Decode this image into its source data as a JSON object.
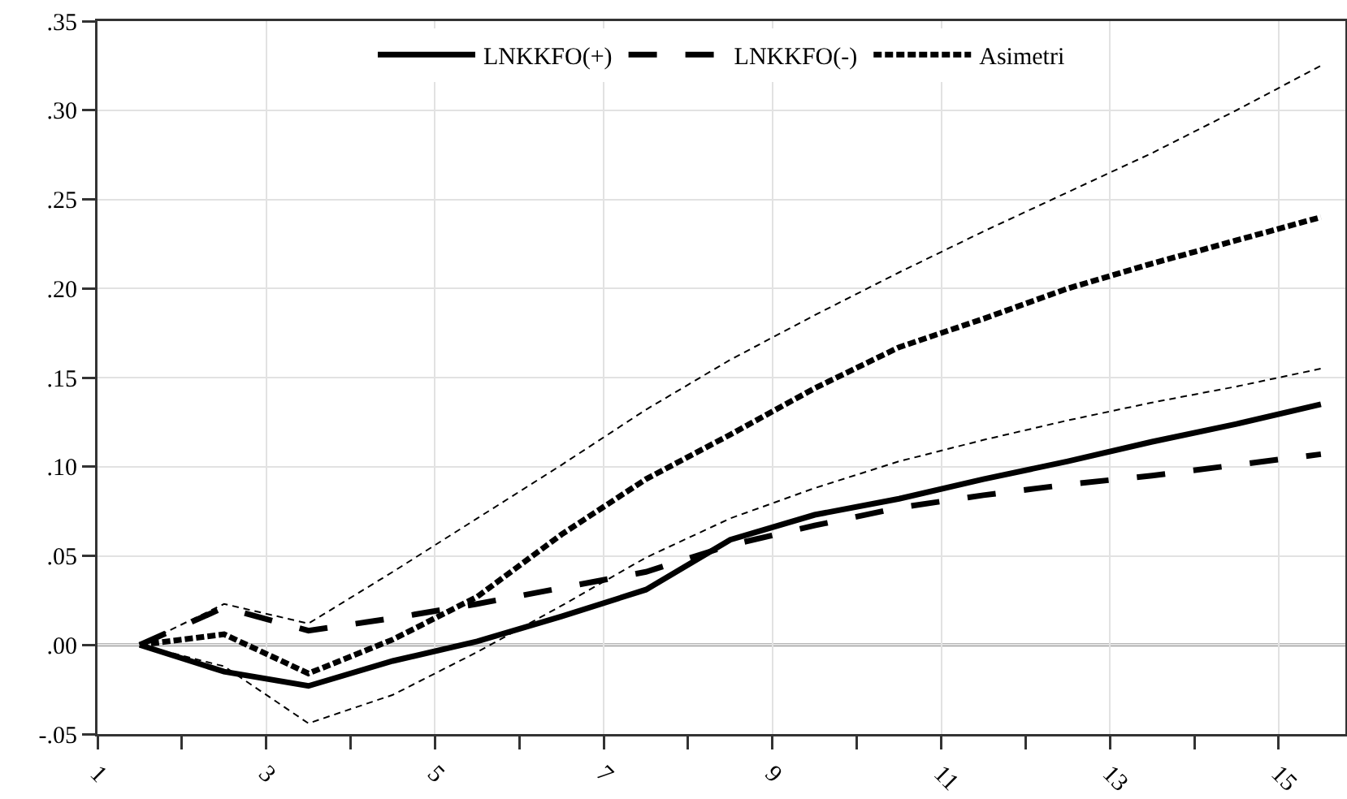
{
  "chart_data": {
    "type": "line",
    "x": [
      1,
      2,
      3,
      4,
      5,
      6,
      7,
      8,
      9,
      10,
      11,
      12,
      13,
      14,
      15
    ],
    "series": [
      {
        "name": "LNKKFO(+)",
        "color": "#000000",
        "line_style": "solid",
        "values": [
          0,
          -0.015,
          -0.023,
          -0.009,
          0.002,
          0.016,
          0.031,
          0.059,
          0.073,
          0.082,
          0.093,
          0.103,
          0.114,
          0.124,
          0.135
        ]
      },
      {
        "name": "LNKKFO(-)",
        "color": "#000000",
        "line_style": "dashed",
        "values": [
          0,
          0.021,
          0.008,
          0.015,
          0.023,
          0.032,
          0.041,
          0.056,
          0.067,
          0.077,
          0.084,
          0.09,
          0.095,
          0.101,
          0.107
        ]
      },
      {
        "name": "Asimetri",
        "color": "#000000",
        "line_style": "dotted",
        "values": [
          0,
          0.006,
          -0.016,
          0.003,
          0.027,
          0.062,
          0.093,
          0.118,
          0.144,
          0.167,
          0.183,
          0.2,
          0.214,
          0.227,
          0.24
        ]
      },
      {
        "color": "#000000",
        "line_style": "dashed",
        "values": [
          0,
          0.023,
          0.012,
          0.041,
          0.071,
          0.101,
          0.132,
          0.16,
          0.185,
          0.209,
          0.232,
          0.254,
          0.276,
          0.3,
          0.325
        ]
      },
      {
        "color": "#000000",
        "line_style": "dashed",
        "values": [
          0,
          -0.012,
          -0.044,
          -0.028,
          -0.004,
          0.022,
          0.049,
          0.071,
          0.088,
          0.103,
          0.115,
          0.126,
          0.136,
          0.145,
          0.155
        ]
      }
    ],
    "xlim": [
      0.5,
      15.29
    ],
    "xticks": [
      {
        "value": 0.5,
        "label": "1"
      },
      {
        "value": 1.5,
        "label": null
      },
      {
        "value": 2.5,
        "label": "3"
      },
      {
        "value": 3.5,
        "label": null
      },
      {
        "value": 4.5,
        "label": "5"
      },
      {
        "value": 5.5,
        "label": null
      },
      {
        "value": 6.5,
        "label": "7"
      },
      {
        "value": 7.5,
        "label": null
      },
      {
        "value": 8.5,
        "label": "9"
      },
      {
        "value": 9.5,
        "label": null
      },
      {
        "value": 10.5,
        "label": "11"
      },
      {
        "value": 11.5,
        "label": null
      },
      {
        "value": 12.5,
        "label": "13"
      },
      {
        "value": 13.5,
        "label": null
      },
      {
        "value": 14.5,
        "label": "15"
      }
    ],
    "ylim": [
      -0.05,
      0.35
    ],
    "yticks": [
      {
        "value": -0.05,
        "label": "-.05"
      },
      {
        "value": 0,
        "label": ".00"
      },
      {
        "value": 0.05,
        "label": ".05"
      },
      {
        "value": 0.1,
        "label": ".10"
      },
      {
        "value": 0.15,
        "label": ".15"
      },
      {
        "value": 0.2,
        "label": ".20"
      },
      {
        "value": 0.25,
        "label": ".25"
      },
      {
        "value": 0.3,
        "label": ".30"
      },
      {
        "value": 0.35,
        "label": ".35"
      }
    ],
    "ref_lines": [
      {
        "axis": "y",
        "value": 0,
        "color": "#a0a0a0"
      }
    ],
    "grid": true,
    "legend": "top",
    "marker": "none"
  }
}
